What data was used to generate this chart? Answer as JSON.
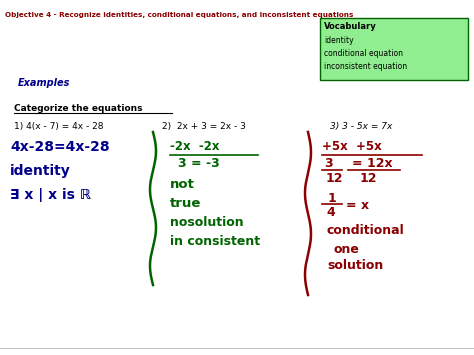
{
  "bg_color": "#ffffff",
  "objective_text": "Objective 4 - Recognize identities, conditional equations, and inconsistent equations",
  "objective_color": "#8B0000",
  "vocab_box_color": "#90EE90",
  "vocab_title": "Vocabulary",
  "vocab_items": [
    "identity",
    "conditional equation",
    "inconsistent equation"
  ],
  "examples_label": "Examples",
  "examples_color": "#00008B",
  "categorize_text": "Categorize the equations",
  "eq1_label": "1) 4(x - 7) = 4x - 28",
  "eq2_label": "2)  2x + 3 = 2x - 3",
  "eq3_label": "3) 3 - 5x = 7x",
  "eq1_color": "#00008B",
  "eq2_color": "#006400",
  "eq3_color": "#8B0000",
  "label_color": "#000000"
}
